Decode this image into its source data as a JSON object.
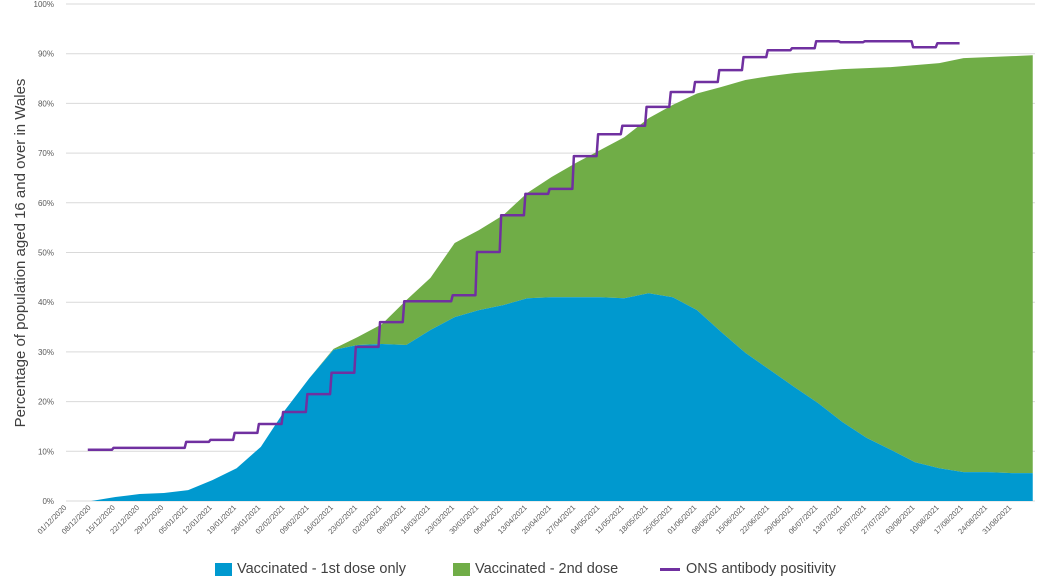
{
  "chart_data": {
    "type": "area",
    "stacked": true,
    "title": "",
    "xlabel": "",
    "ylabel": "Percentage of population aged 16 and over in Wales",
    "ylim": [
      0,
      100
    ],
    "y_ticks": [
      "0%",
      "10%",
      "20%",
      "30%",
      "40%",
      "50%",
      "60%",
      "70%",
      "80%",
      "90%",
      "100%"
    ],
    "grid": "horizontal",
    "legend_position": "bottom",
    "x_ticks": [
      "01/12/2020",
      "08/12/2020",
      "15/12/2020",
      "22/12/2020",
      "29/12/2020",
      "05/01/2021",
      "12/01/2021",
      "19/01/2021",
      "26/01/2021",
      "02/02/2021",
      "09/02/2021",
      "16/02/2021",
      "23/02/2021",
      "02/03/2021",
      "09/03/2021",
      "16/03/2021",
      "23/03/2021",
      "30/03/2021",
      "06/04/2021",
      "13/04/2021",
      "20/04/2021",
      "27/04/2021",
      "04/05/2021",
      "11/05/2021",
      "18/05/2021",
      "25/05/2021",
      "01/06/2021",
      "08/06/2021",
      "15/06/2021",
      "22/06/2021",
      "29/06/2021",
      "06/07/2021",
      "13/07/2021",
      "20/07/2021",
      "27/07/2021",
      "03/08/2021",
      "10/08/2021",
      "17/08/2021",
      "24/08/2021",
      "31/08/2021"
    ],
    "x": [
      "01/12/2020",
      "08/12/2020",
      "15/12/2020",
      "22/12/2020",
      "29/12/2020",
      "05/01/2021",
      "12/01/2021",
      "19/01/2021",
      "26/01/2021",
      "02/02/2021",
      "09/02/2021",
      "16/02/2021",
      "23/02/2021",
      "02/03/2021",
      "09/03/2021",
      "16/03/2021",
      "23/03/2021",
      "30/03/2021",
      "06/04/2021",
      "13/04/2021",
      "20/04/2021",
      "27/04/2021",
      "04/05/2021",
      "11/05/2021",
      "18/05/2021",
      "25/05/2021",
      "01/06/2021",
      "08/06/2021",
      "15/06/2021",
      "22/06/2021",
      "29/06/2021",
      "06/07/2021",
      "13/07/2021",
      "20/07/2021",
      "27/07/2021",
      "03/08/2021",
      "10/08/2021",
      "17/08/2021",
      "24/08/2021",
      "31/08/2021",
      "06/09/2021"
    ],
    "series": [
      {
        "name": "Vaccinated - 1st dose only",
        "color": "#0099cf",
        "kind": "area",
        "values": [
          0,
          0,
          0.8,
          1.4,
          1.6,
          2.2,
          4.2,
          6.6,
          10.9,
          18.3,
          24.7,
          30.4,
          31.4,
          31.6,
          31.4,
          34.4,
          37,
          38.4,
          39.4,
          40.8,
          41,
          41,
          41,
          40.8,
          41.8,
          41,
          38.4,
          34,
          29.8,
          26.4,
          23,
          19.7,
          15.9,
          12.7,
          10.3,
          7.8,
          6.6,
          5.8,
          5.8,
          5.6,
          5.6
        ]
      },
      {
        "name": "Vaccinated - 2nd dose",
        "color": "#70ad47",
        "kind": "area",
        "values": [
          0,
          0,
          0,
          0,
          0,
          0,
          0,
          0,
          0,
          0,
          0,
          0.2,
          1.6,
          4,
          9,
          10.5,
          14.9,
          16.1,
          18.1,
          21.2,
          24.2,
          27,
          29.6,
          32.4,
          35.2,
          38.7,
          43.6,
          49.3,
          54.9,
          59.1,
          63.1,
          66.8,
          71,
          74.4,
          77,
          79.9,
          81.5,
          83.3,
          83.5,
          83.9,
          84.1
        ]
      },
      {
        "name": "ONS antibody positivity",
        "color": "#7030a0",
        "kind": "step-line",
        "x": [
          "07/12/2020",
          "14/12/2020",
          "21/12/2020",
          "28/12/2020",
          "04/01/2021",
          "11/01/2021",
          "18/01/2021",
          "25/01/2021",
          "01/02/2021",
          "08/02/2021",
          "15/02/2021",
          "22/02/2021",
          "01/03/2021",
          "08/03/2021",
          "15/03/2021",
          "22/03/2021",
          "29/03/2021",
          "05/04/2021",
          "12/04/2021",
          "19/04/2021",
          "26/04/2021",
          "03/05/2021",
          "10/05/2021",
          "17/05/2021",
          "24/05/2021",
          "31/05/2021",
          "07/06/2021",
          "14/06/2021",
          "21/06/2021",
          "28/06/2021",
          "05/07/2021",
          "12/07/2021",
          "19/07/2021",
          "26/07/2021",
          "02/08/2021",
          "09/08/2021",
          "15/08/2021"
        ],
        "values": [
          10.3,
          10.7,
          10.7,
          10.7,
          11.9,
          12.3,
          13.7,
          15.5,
          17.9,
          21.5,
          25.8,
          31.0,
          36.0,
          40.2,
          40.2,
          41.4,
          50.1,
          57.5,
          61.8,
          62.8,
          69.4,
          73.8,
          75.5,
          79.3,
          82.3,
          84.3,
          86.7,
          89.3,
          90.7,
          91.1,
          92.5,
          92.3,
          92.5,
          92.5,
          91.3,
          92.1,
          92.1
        ]
      }
    ]
  }
}
